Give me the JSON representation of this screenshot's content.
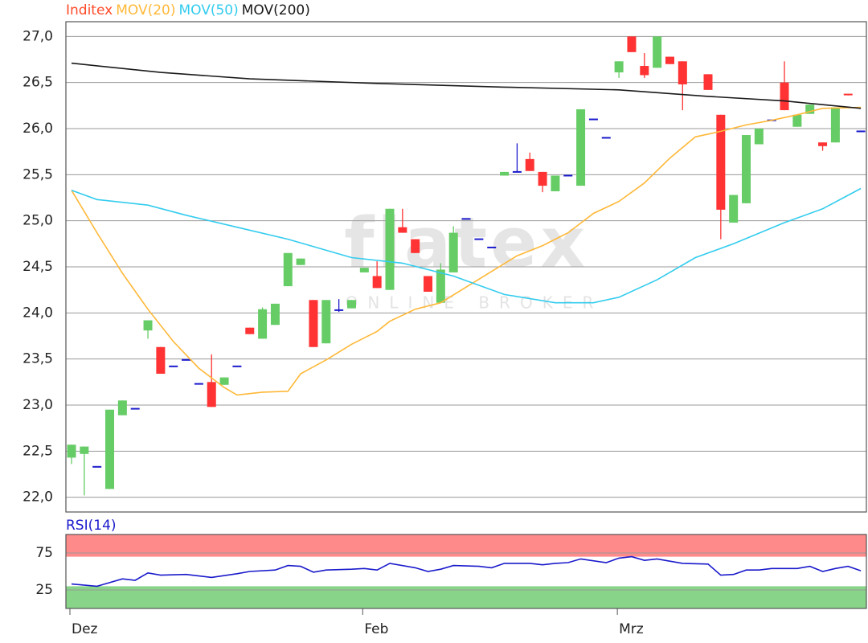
{
  "chart_data": [
    {
      "type": "candlestick",
      "series": [
        {
          "name": "Inditex",
          "color": "#ff4a2a",
          "up_color": "#66cc66",
          "down_color": "#ff3333",
          "flat_color": "#1a1acc",
          "open": [
            22.43,
            22.47,
            22.33,
            22.09,
            22.89,
            22.96,
            23.81,
            23.63,
            23.42,
            23.49,
            23.23,
            23.25,
            23.22,
            23.42,
            23.84,
            23.72,
            23.87,
            24.29,
            24.52,
            24.14,
            23.67,
            24.03,
            24.05,
            24.44,
            24.4,
            24.25,
            24.93,
            24.8,
            24.4,
            24.11,
            24.44,
            25.02,
            24.8,
            24.71,
            25.49,
            25.53,
            25.67,
            25.53,
            25.32,
            25.49,
            25.38,
            26.1,
            25.9,
            26.61,
            27.0,
            26.68,
            26.66,
            26.78,
            26.73,
            null,
            26.59,
            26.15,
            24.98,
            25.19,
            25.83,
            26.09,
            26.5,
            26.02,
            26.16,
            25.85,
            25.85,
            26.37,
            25.97
          ],
          "high": [
            22.57,
            22.55,
            22.33,
            22.95,
            23.05,
            22.96,
            23.92,
            23.63,
            23.42,
            23.49,
            23.23,
            23.55,
            23.3,
            23.42,
            23.84,
            24.06,
            24.1,
            24.65,
            24.59,
            24.14,
            24.14,
            24.15,
            24.14,
            24.49,
            24.56,
            25.13,
            25.13,
            24.8,
            24.4,
            24.54,
            24.94,
            25.02,
            24.8,
            24.71,
            25.53,
            25.84,
            25.74,
            25.53,
            25.49,
            25.49,
            26.21,
            26.1,
            25.9,
            26.73,
            27.0,
            26.82,
            27.0,
            26.78,
            26.73,
            null,
            26.59,
            26.15,
            25.28,
            25.93,
            26.0,
            26.09,
            26.73,
            26.15,
            26.26,
            25.85,
            26.23,
            26.37,
            25.97
          ],
          "low": [
            22.36,
            22.02,
            22.33,
            22.09,
            22.89,
            22.96,
            23.72,
            23.34,
            23.42,
            23.49,
            23.23,
            22.98,
            23.22,
            23.42,
            23.77,
            23.72,
            23.87,
            24.29,
            24.52,
            23.63,
            23.67,
            24.01,
            24.05,
            24.44,
            24.27,
            24.25,
            24.87,
            24.65,
            24.23,
            24.11,
            24.44,
            25.02,
            24.8,
            24.71,
            25.49,
            25.53,
            25.54,
            25.31,
            25.32,
            25.49,
            25.38,
            26.1,
            25.9,
            26.55,
            26.83,
            26.55,
            26.66,
            26.7,
            26.2,
            null,
            26.42,
            24.8,
            24.98,
            25.19,
            25.83,
            26.09,
            26.2,
            26.02,
            26.16,
            25.76,
            25.85,
            26.36,
            25.97
          ],
          "close": [
            22.57,
            22.55,
            22.33,
            22.95,
            23.05,
            22.96,
            23.92,
            23.34,
            23.42,
            23.49,
            23.23,
            22.98,
            23.3,
            23.42,
            23.77,
            24.04,
            24.1,
            24.65,
            24.59,
            23.63,
            24.14,
            24.03,
            24.14,
            24.49,
            24.27,
            25.13,
            24.87,
            24.65,
            24.23,
            24.47,
            24.87,
            25.02,
            24.8,
            24.71,
            25.53,
            25.53,
            25.54,
            25.38,
            25.49,
            25.49,
            26.21,
            26.1,
            25.9,
            26.73,
            26.83,
            26.58,
            27.0,
            26.7,
            26.48,
            null,
            26.42,
            25.12,
            25.28,
            25.93,
            26.0,
            26.09,
            26.2,
            26.15,
            26.26,
            25.81,
            26.23,
            26.36,
            25.97
          ]
        },
        {
          "name": "MOV(20)",
          "color": "#ffb838",
          "x": [
            0,
            2,
            4,
            6,
            8,
            10,
            12,
            13,
            15,
            17,
            18,
            20,
            22,
            24,
            25,
            27,
            29,
            31,
            33,
            35,
            37,
            39,
            41,
            43,
            45,
            47,
            49,
            51,
            53,
            55,
            57,
            59,
            62
          ],
          "values": [
            25.33,
            24.87,
            24.43,
            24.04,
            23.69,
            23.4,
            23.19,
            23.11,
            23.14,
            23.15,
            23.34,
            23.49,
            23.66,
            23.8,
            23.91,
            24.04,
            24.11,
            24.28,
            24.45,
            24.62,
            24.73,
            24.87,
            25.08,
            25.21,
            25.41,
            25.68,
            25.91,
            25.97,
            26.04,
            26.09,
            26.15,
            26.22,
            26.23
          ]
        },
        {
          "name": "MOV(50)",
          "color": "#33ccee",
          "x": [
            0,
            2,
            6,
            9,
            13,
            17,
            22,
            26,
            30,
            34,
            38,
            41,
            43,
            46,
            49,
            52,
            56,
            59,
            62
          ],
          "values": [
            25.33,
            25.23,
            25.17,
            25.06,
            24.93,
            24.8,
            24.6,
            24.54,
            24.4,
            24.2,
            24.11,
            24.11,
            24.17,
            24.36,
            24.6,
            24.75,
            24.98,
            25.13,
            25.35
          ]
        },
        {
          "name": "MOV(200)",
          "color": "#1a1a1a",
          "x": [
            0,
            7,
            14,
            24,
            34,
            43,
            50,
            56,
            62
          ],
          "values": [
            26.71,
            26.61,
            26.54,
            26.49,
            26.45,
            26.42,
            26.35,
            26.3,
            26.22
          ]
        }
      ],
      "ylim": [
        21.84,
        27.16
      ],
      "yticks": [
        {
          "value": 22,
          "label": "22,0"
        },
        {
          "value": 22.5,
          "label": "22,5"
        },
        {
          "value": 23,
          "label": "23,0"
        },
        {
          "value": 23.5,
          "label": "23,5"
        },
        {
          "value": 24,
          "label": "24,0"
        },
        {
          "value": 24.5,
          "label": "24,5"
        },
        {
          "value": 25,
          "label": "25,0"
        },
        {
          "value": 25.5,
          "label": "25,5"
        },
        {
          "value": 26,
          "label": "26,0"
        },
        {
          "value": 26.5,
          "label": "26,5"
        },
        {
          "value": 27,
          "label": "27,0"
        }
      ],
      "grid": true,
      "watermark": "flatex",
      "watermark_subtitle": "ONLINE BROKER"
    },
    {
      "type": "line",
      "series": [
        {
          "name": "RSI(14)",
          "color": "#1a1acc",
          "x": [
            0,
            2,
            4,
            5,
            6,
            7,
            9,
            11,
            13,
            14,
            16,
            17,
            18,
            19,
            20,
            22,
            23,
            24,
            25,
            27,
            28,
            29,
            30,
            32,
            33,
            34,
            36,
            37,
            38,
            39,
            40,
            42,
            43,
            44,
            45,
            46,
            48,
            50,
            51,
            52,
            53,
            54,
            55,
            57,
            58,
            59,
            60,
            61,
            62
          ],
          "values": [
            33,
            30,
            40,
            38,
            48,
            45,
            46,
            42,
            47,
            50,
            52,
            58,
            57,
            49,
            52,
            53,
            54,
            52,
            61,
            55,
            50,
            53,
            58,
            57,
            55,
            61,
            61,
            59,
            61,
            62,
            67,
            62,
            68,
            70,
            65,
            67,
            61,
            60,
            45,
            46,
            52,
            52,
            54,
            54,
            57,
            50,
            54,
            57,
            51
          ]
        }
      ],
      "bands": [
        {
          "range": [
            70,
            100
          ],
          "color": "#ff8a8a"
        },
        {
          "range": [
            0,
            30
          ],
          "color": "#88d488"
        }
      ],
      "ylim": [
        0,
        100
      ],
      "yticks": [
        25,
        75
      ],
      "grid": true,
      "categories": [
        "Dez",
        null,
        null,
        null,
        null,
        null,
        null,
        null,
        null,
        null,
        null,
        null,
        null,
        null,
        null,
        null,
        null,
        null,
        null,
        null,
        null,
        null,
        null,
        "Feb",
        null,
        null,
        null,
        null,
        null,
        null,
        null,
        null,
        null,
        null,
        null,
        null,
        null,
        null,
        null,
        null,
        null,
        null,
        null,
        "Mrz",
        null,
        null,
        null,
        null,
        null,
        null,
        null,
        null,
        null,
        null,
        null,
        null,
        null,
        null,
        null,
        null,
        null,
        null,
        null
      ]
    }
  ]
}
